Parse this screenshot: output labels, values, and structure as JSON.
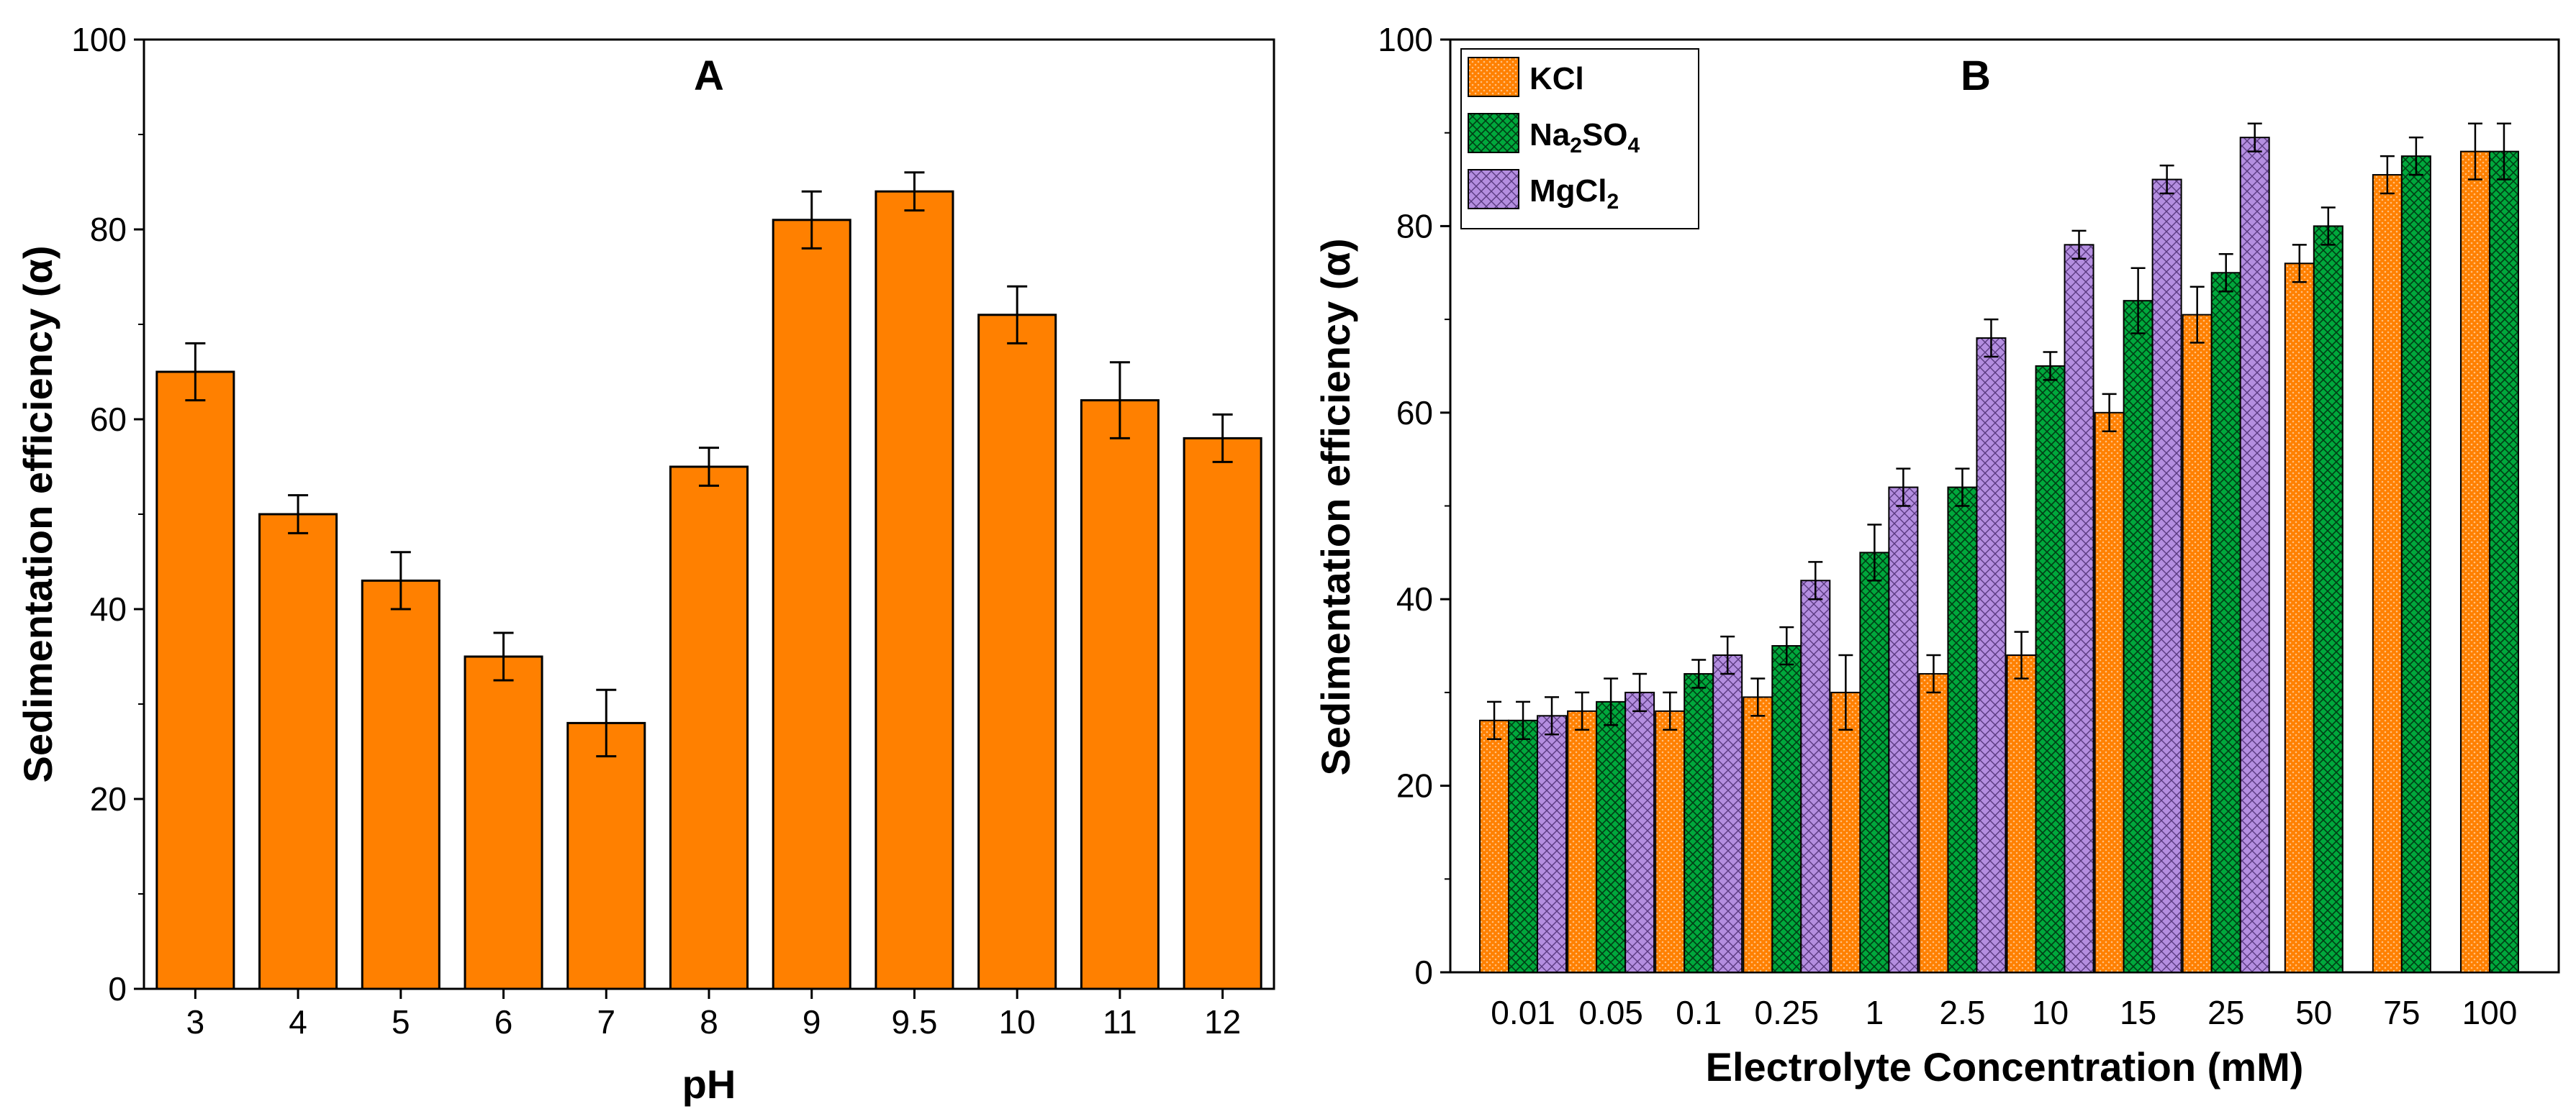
{
  "chart_data": [
    {
      "type": "bar",
      "panel_label": "A",
      "categories": [
        "3",
        "4",
        "5",
        "6",
        "7",
        "8",
        "9",
        "9.5",
        "10",
        "11",
        "12"
      ],
      "series": [
        {
          "values": [
            65,
            50,
            43,
            35,
            28,
            55,
            81,
            84,
            71,
            62,
            58
          ],
          "errors": [
            3,
            2,
            3,
            2.5,
            3.5,
            2,
            3,
            2,
            3,
            4,
            2.5
          ],
          "color": "#ff8000"
        }
      ],
      "xlabel": "pH",
      "ylabel": "Sedimentation efficiency  (α)",
      "ylim": [
        0,
        100
      ],
      "yticks": [
        0,
        20,
        40,
        60,
        80,
        100
      ],
      "grid": false
    },
    {
      "type": "bar",
      "panel_label": "B",
      "categories": [
        "0.01",
        "0.05",
        "0.1",
        "0.25",
        "1",
        "2.5",
        "10",
        "15",
        "25",
        "50",
        "75",
        "100"
      ],
      "series": [
        {
          "name": "KCl",
          "values": [
            27,
            28,
            28,
            29.5,
            30,
            32,
            34,
            60,
            70.5,
            76,
            85.5,
            88
          ],
          "errors": [
            2,
            2,
            2,
            2,
            4,
            2,
            2.5,
            2,
            3,
            2,
            2,
            3
          ],
          "color": "#ff8000",
          "pattern": "dots"
        },
        {
          "name": "Na2SO4",
          "values": [
            27,
            29,
            32,
            35,
            45,
            52,
            65,
            72,
            75,
            80,
            87.5,
            88
          ],
          "errors": [
            2,
            2.5,
            1.5,
            2,
            3,
            2,
            1.5,
            3.5,
            2,
            2,
            2,
            3
          ],
          "color": "#00a83c",
          "pattern": "crosshatch"
        },
        {
          "name": "MgCl2",
          "values": [
            27.5,
            30,
            34,
            42,
            52,
            68,
            78,
            85,
            89.5,
            null,
            null,
            null
          ],
          "errors": [
            2,
            2,
            2,
            2,
            2,
            2,
            1.5,
            1.5,
            1.5,
            null,
            null,
            null
          ],
          "color": "#b48ee0",
          "pattern": "diagonal"
        }
      ],
      "xlabel": "Electrolyte Concentration (mM)",
      "ylabel": "Sedimentation efficiency  (α)",
      "ylim": [
        0,
        100
      ],
      "yticks": [
        0,
        20,
        40,
        60,
        80,
        100
      ],
      "legend": "top-left",
      "grid": false
    }
  ]
}
